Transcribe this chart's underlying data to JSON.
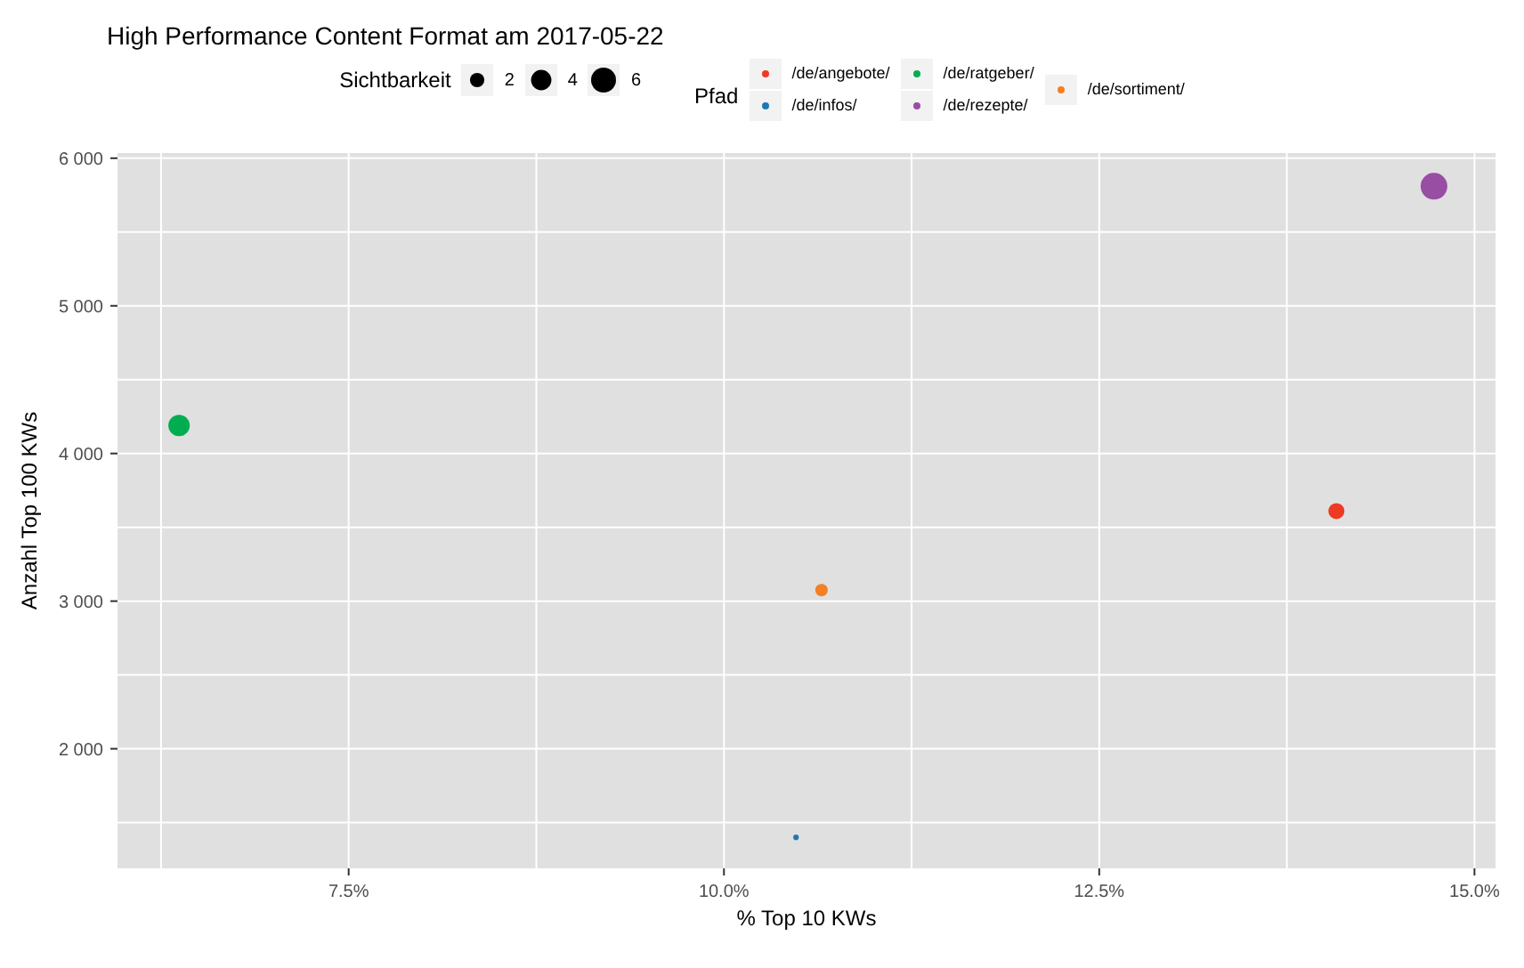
{
  "chart_data": {
    "type": "bubble",
    "title": "High Performance Content Format am 2017-05-22",
    "xlabel": "% Top 10 KWs",
    "ylabel": "Anzahl Top 100 KWs",
    "legend_title": "Pfad",
    "annotations": [
      "Sichtbarkeit"
    ],
    "size_legend": [
      2,
      4,
      6
    ],
    "series": [
      {
        "name": "/de/angebote/",
        "color": "#ee3a24",
        "x": [
          14.08
        ],
        "values": [
          3610
        ],
        "sizes": [
          2.5
        ]
      },
      {
        "name": "/de/infos/",
        "color": "#1f78b4",
        "x": [
          10.48
        ],
        "values": [
          1400
        ],
        "sizes": [
          0.3
        ]
      },
      {
        "name": "/de/ratgeber/",
        "color": "#00ad50",
        "x": [
          6.37
        ],
        "values": [
          4190
        ],
        "sizes": [
          4.4
        ]
      },
      {
        "name": "/de/rezepte/",
        "color": "#984ea3",
        "x": [
          14.73
        ],
        "values": [
          5810
        ],
        "sizes": [
          6.9
        ]
      },
      {
        "name": "/de/sortiment/",
        "color": "#f47f24",
        "x": [
          10.65
        ],
        "values": [
          3075
        ],
        "sizes": [
          1.5
        ]
      }
    ],
    "xlim": [
      5.96,
      15.14
    ],
    "ylim": [
      1190,
      6035
    ],
    "xticks": [
      {
        "value": 6.25,
        "label": null
      },
      {
        "value": 7.5,
        "label": "7.5%"
      },
      {
        "value": 8.75,
        "label": null
      },
      {
        "value": 10,
        "label": "10.0%"
      },
      {
        "value": 11.25,
        "label": null
      },
      {
        "value": 12.5,
        "label": "12.5%"
      },
      {
        "value": 13.75,
        "label": null
      },
      {
        "value": 15,
        "label": "15.0%"
      }
    ],
    "yticks": [
      {
        "value": 1500,
        "label": null
      },
      {
        "value": 2000,
        "label": "2 000"
      },
      {
        "value": 2500,
        "label": null
      },
      {
        "value": 3000,
        "label": "3 000"
      },
      {
        "value": 3500,
        "label": null
      },
      {
        "value": 4000,
        "label": "4 000"
      },
      {
        "value": 4500,
        "label": null
      },
      {
        "value": 5000,
        "label": "5 000"
      },
      {
        "value": 5500,
        "label": null
      },
      {
        "value": 6000,
        "label": "6 000"
      }
    ],
    "grid": true,
    "legend": "top"
  }
}
